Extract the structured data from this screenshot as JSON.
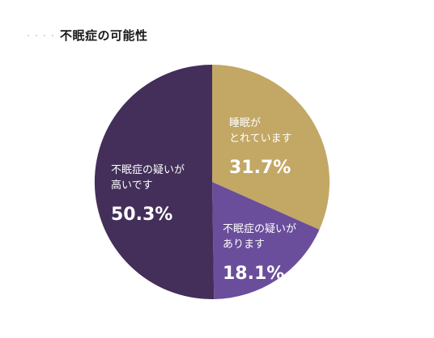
{
  "chart_data": {
    "type": "pie",
    "title": "不眠症の可能性",
    "slices": [
      {
        "label_lines": [
          "睡眠が",
          "とれています"
        ],
        "value": 31.7,
        "value_label": "31.7%",
        "color": "#c3a765"
      },
      {
        "label_lines": [
          "不眠症の疑いが",
          "あります"
        ],
        "value": 18.1,
        "value_label": "18.1%",
        "color": "#6b4e9b"
      },
      {
        "label_lines": [
          "不眠症の疑いが",
          "高いです"
        ],
        "value": 50.3,
        "value_label": "50.3%",
        "color": "#432f59"
      }
    ],
    "start_angle_deg": 0,
    "direction": "clockwise",
    "legend": "none"
  }
}
